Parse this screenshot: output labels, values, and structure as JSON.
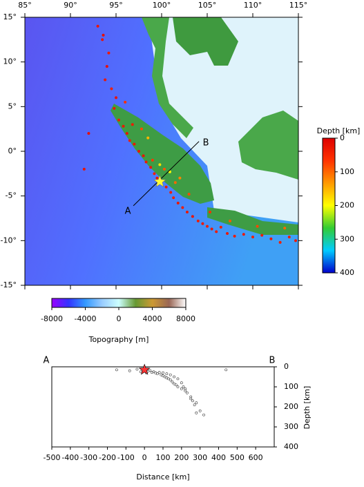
{
  "map": {
    "lonlim": [
      85,
      115
    ],
    "latlim": [
      -15,
      15
    ],
    "lon_ticks": [
      {
        "value": 85,
        "label": "85°"
      },
      {
        "value": 90,
        "label": "90°"
      },
      {
        "value": 95,
        "label": "95°"
      },
      {
        "value": 100,
        "label": "100°"
      },
      {
        "value": 105,
        "label": "105°"
      },
      {
        "value": 110,
        "label": "110°"
      },
      {
        "value": 115,
        "label": "115°"
      }
    ],
    "lat_ticks": [
      {
        "value": 15,
        "label": "15°"
      },
      {
        "value": 10,
        "label": "10°"
      },
      {
        "value": 5,
        "label": "5°"
      },
      {
        "value": 0,
        "label": "0°"
      },
      {
        "value": -5,
        "label": "-5°"
      },
      {
        "value": -10,
        "label": "-10°"
      },
      {
        "value": -15,
        "label": "-15°"
      }
    ],
    "earthquakes": {
      "lon": [
        93.0,
        93.5,
        94.2,
        94.0,
        93.8,
        94.5,
        95.0,
        94.8,
        93.6,
        95.3,
        95.8,
        96.2,
        96.5,
        97.0,
        96.8,
        97.5,
        98.0,
        98.3,
        98.8,
        99.2,
        99.5,
        100.0,
        100.5,
        101.0,
        101.3,
        101.8,
        102.3,
        102.8,
        103.4,
        104.0,
        104.5,
        105.0,
        105.5,
        106.0,
        106.5,
        107.2,
        108.0,
        109.0,
        110.0,
        111.0,
        112.0,
        113.0,
        114.0,
        114.7,
        92.0,
        91.5,
        96.0,
        97.8,
        99.0,
        100.3,
        101.5,
        103.0,
        105.3,
        107.5,
        110.5,
        113.5,
        98.5,
        99.8,
        100.9,
        102.0
      ],
      "lat": [
        14.0,
        12.5,
        11.0,
        9.5,
        8.0,
        7.0,
        6.0,
        4.8,
        13.0,
        3.5,
        2.8,
        2.0,
        1.2,
        0.8,
        3.0,
        0.0,
        -0.5,
        -1.2,
        -1.8,
        -2.5,
        -3.0,
        -3.4,
        -4.0,
        -4.6,
        -5.2,
        -5.8,
        -6.3,
        -6.8,
        -7.3,
        -7.8,
        -8.1,
        -8.4,
        -8.7,
        -9.0,
        -8.5,
        -9.2,
        -9.5,
        -9.3,
        -9.6,
        -9.4,
        -9.8,
        -10.2,
        -9.6,
        -10.0,
        2.0,
        -2.0,
        5.5,
        2.5,
        -1.0,
        -2.0,
        -3.5,
        -4.8,
        -6.8,
        -7.8,
        -8.4,
        -8.6,
        1.5,
        -1.5,
        -2.3,
        -3.0
      ],
      "depth": [
        30,
        25,
        35,
        20,
        30,
        40,
        25,
        30,
        20,
        35,
        30,
        25,
        40,
        30,
        35,
        30,
        25,
        35,
        30,
        40,
        30,
        25,
        30,
        35,
        40,
        30,
        35,
        30,
        25,
        35,
        30,
        40,
        30,
        35,
        40,
        30,
        35,
        30,
        40,
        35,
        30,
        40,
        35,
        30,
        20,
        25,
        60,
        80,
        70,
        90,
        100,
        80,
        60,
        90,
        80,
        100,
        150,
        180,
        200,
        120
      ]
    },
    "epicenter": {
      "lon": 99.8,
      "lat": -3.4,
      "color": "#ffff33"
    },
    "profile": {
      "start": [
        96.9,
        -6.1
      ],
      "end": [
        104.1,
        1.1
      ],
      "start_label": "A",
      "end_label": "B"
    }
  },
  "depth_colorbar": {
    "title": "Depth [km]",
    "lim": [
      0,
      400
    ],
    "ticks": [
      0,
      100,
      200,
      300,
      400
    ],
    "colors": [
      "#dd0000",
      "#ff3300",
      "#ff9900",
      "#ffff00",
      "#33cc33",
      "#00ccff",
      "#0000cc"
    ]
  },
  "topography_colorbar": {
    "title": "Topography [m]",
    "lim": [
      -8000,
      8000
    ],
    "ticks": [
      -8000,
      -4000,
      0,
      4000,
      8000
    ],
    "colors": [
      "#9900ff",
      "#3333ff",
      "#3399ff",
      "#99ccff",
      "#ccffff",
      "#669933",
      "#cc9933",
      "#996655",
      "#ffffff"
    ]
  },
  "cross_section": {
    "type": "scatter",
    "xlabel": "Distance [km]",
    "ylabel": "Depth [km]",
    "xlim": [
      -500,
      700
    ],
    "ylim": [
      0,
      400
    ],
    "xticks": [
      -500,
      -400,
      -300,
      -200,
      -100,
      0,
      100,
      200,
      300,
      400,
      500,
      600
    ],
    "yticks": [
      0,
      100,
      200,
      300,
      400
    ],
    "start_label": "A",
    "end_label": "B",
    "x": [
      -150,
      -80,
      -40,
      -20,
      10,
      20,
      30,
      40,
      50,
      60,
      70,
      80,
      90,
      100,
      110,
      120,
      130,
      140,
      150,
      160,
      170,
      180,
      200,
      220,
      250,
      280,
      300,
      320,
      440,
      100,
      120,
      140,
      160,
      180,
      200,
      210,
      220,
      230,
      250,
      260,
      270,
      280
    ],
    "y": [
      15,
      20,
      12,
      25,
      30,
      22,
      18,
      28,
      25,
      30,
      35,
      28,
      40,
      45,
      50,
      55,
      60,
      65,
      75,
      85,
      90,
      100,
      110,
      120,
      160,
      180,
      220,
      240,
      15,
      30,
      35,
      40,
      50,
      60,
      80,
      100,
      110,
      130,
      150,
      170,
      190,
      230
    ],
    "star": {
      "x": 0,
      "y": 15,
      "color": "#ff3333"
    }
  }
}
